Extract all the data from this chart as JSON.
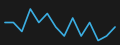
{
  "x": [
    0,
    1,
    2,
    3,
    4,
    5,
    6,
    7,
    8,
    9,
    10,
    11,
    12,
    13
  ],
  "y": [
    4,
    4,
    2,
    7,
    4,
    6,
    3,
    1,
    5,
    1,
    4,
    0,
    1,
    3
  ],
  "line_color": "#3baee2",
  "linewidth": 1.2,
  "background_color": "#1a1a1a",
  "ylim": [
    -0.5,
    8.5
  ],
  "xlim": [
    -0.3,
    13.3
  ]
}
